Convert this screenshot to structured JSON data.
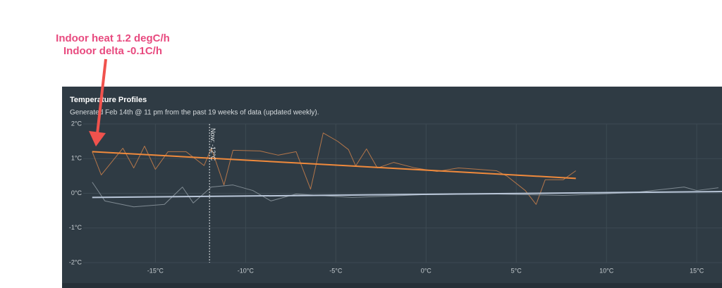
{
  "annotation": [
    "Indoor heat 1.2 degC/h",
    "Indoor delta -0.1C/h"
  ],
  "chart_data": {
    "type": "line",
    "title": "Temperature Profiles",
    "subtitle": "Generated Feb 14th @ 11 pm from the past 19 weeks of data (updated weekly).",
    "xlim": [
      -19,
      16.4
    ],
    "ylim": [
      -2,
      2
    ],
    "xticks": [
      {
        "value": -15,
        "label": "-15°C"
      },
      {
        "value": -10,
        "label": "-10°C"
      },
      {
        "value": -5,
        "label": "-5°C"
      },
      {
        "value": 0,
        "label": "0°C"
      },
      {
        "value": 5,
        "label": "5°C"
      },
      {
        "value": 10,
        "label": "10°C"
      },
      {
        "value": 15,
        "label": "15°C"
      }
    ],
    "yticks": [
      {
        "value": 2,
        "label": "2°C"
      },
      {
        "value": 1,
        "label": "1°C"
      },
      {
        "value": 0,
        "label": "0°C"
      },
      {
        "value": -1,
        "label": "-1°C"
      },
      {
        "value": -2,
        "label": "-2°C"
      }
    ],
    "grid": true,
    "marker": {
      "value": -12,
      "label": "Now: -12°C"
    },
    "series": [
      {
        "color": "#b4764a",
        "width": 1,
        "x": [
          -18.5,
          -18.0,
          -16.8,
          -16.2,
          -15.6,
          -15.0,
          -14.3,
          -13.3,
          -12.3,
          -11.9,
          -11.2,
          -10.7,
          -9.2,
          -8.2,
          -7.2,
          -6.4,
          -5.7,
          -4.9,
          -4.3,
          -3.9,
          -3.3,
          -2.7,
          -1.8,
          -0.6,
          0.6,
          1.8,
          2.9,
          3.9,
          4.5,
          5.5,
          6.1,
          6.6,
          7.6,
          8.3
        ],
        "values": [
          1.2,
          0.53,
          1.3,
          0.73,
          1.36,
          0.69,
          1.2,
          1.2,
          0.8,
          1.3,
          0.24,
          1.24,
          1.22,
          1.1,
          1.2,
          0.12,
          1.74,
          1.5,
          1.26,
          0.79,
          1.28,
          0.73,
          0.89,
          0.73,
          0.63,
          0.73,
          0.69,
          0.65,
          0.49,
          0.08,
          -0.32,
          0.39,
          0.39,
          0.65
        ]
      },
      {
        "color": "#7f8a92",
        "width": 1,
        "x": [
          -18.5,
          -17.8,
          -16.2,
          -14.5,
          -13.5,
          -12.9,
          -11.9,
          -10.7,
          -9.6,
          -8.6,
          -7.2,
          -4.1,
          -0.2,
          3.7,
          7.6,
          11.5,
          14.3,
          15.0,
          16.2
        ],
        "values": [
          0.32,
          -0.22,
          -0.39,
          -0.32,
          0.18,
          -0.28,
          0.18,
          0.24,
          0.08,
          -0.22,
          -0.02,
          -0.12,
          -0.04,
          -0.02,
          -0.06,
          0.02,
          0.18,
          0.08,
          0.16
        ]
      },
      {
        "color": "#f08a3c",
        "width": 2,
        "x": [
          -18.5,
          8.3
        ],
        "values": [
          1.2,
          0.43
        ]
      },
      {
        "color": "#b9c6d8",
        "width": 2,
        "x": [
          -18.5,
          16.4
        ],
        "values": [
          -0.12,
          0.05
        ]
      }
    ]
  }
}
